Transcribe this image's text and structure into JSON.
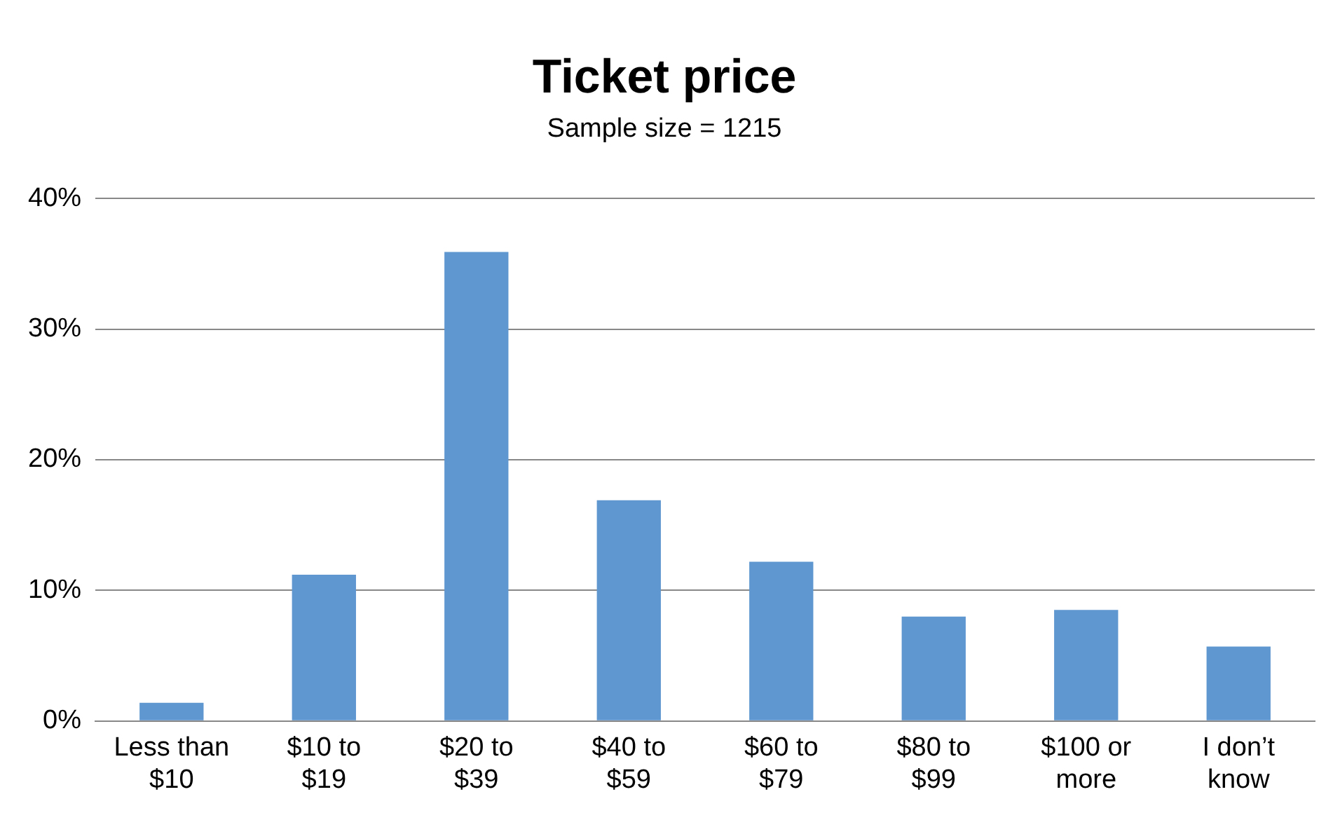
{
  "chart_data": {
    "type": "bar",
    "title": "Ticket price",
    "subtitle": "Sample size = 1215",
    "categories": [
      "Less than $10",
      "$10 to $19",
      "$20 to $39",
      "$40 to $59",
      "$60 to $79",
      "$80 to $99",
      "$100 or more",
      "I don’t know"
    ],
    "values": [
      1.4,
      11.2,
      35.9,
      16.9,
      12.2,
      8.0,
      8.5,
      5.7
    ],
    "color": "#5f97d0",
    "ylim": [
      0,
      40
    ],
    "yticks": [
      {
        "value": 0,
        "label": "0%"
      },
      {
        "value": 10,
        "label": "10%"
      },
      {
        "value": 20,
        "label": "20%"
      },
      {
        "value": 30,
        "label": "30%"
      },
      {
        "value": 40,
        "label": "40%"
      }
    ],
    "grid": "y",
    "legend": false
  }
}
